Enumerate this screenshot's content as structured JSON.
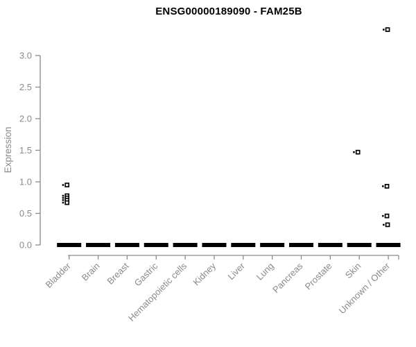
{
  "title": "ENSG00000189090 - FAM25B",
  "chart_data": {
    "type": "scatter",
    "subtype": "strip-plot",
    "title": "ENSG00000189090 - FAM25B",
    "xlabel": "",
    "ylabel": "Expression",
    "ylim": [
      0,
      3.45
    ],
    "yticks": [
      0.0,
      0.5,
      1.0,
      1.5,
      2.0,
      2.5,
      3.0
    ],
    "grid": false,
    "legend": "none",
    "categories": [
      "Bladder",
      "Brain",
      "Breast",
      "Gastric",
      "Hematopoietic cells",
      "Kidney",
      "Liver",
      "Lung",
      "Pancreas",
      "Prostate",
      "Skin",
      "Unknown / Other"
    ],
    "series": [
      {
        "category": "Bladder",
        "zero_band": true,
        "nonzero_values": [
          0.95,
          0.78,
          0.745,
          0.71,
          0.67
        ]
      },
      {
        "category": "Brain",
        "zero_band": true,
        "nonzero_values": []
      },
      {
        "category": "Breast",
        "zero_band": true,
        "nonzero_values": []
      },
      {
        "category": "Gastric",
        "zero_band": true,
        "nonzero_values": []
      },
      {
        "category": "Hematopoietic cells",
        "zero_band": true,
        "nonzero_values": []
      },
      {
        "category": "Kidney",
        "zero_band": true,
        "nonzero_values": []
      },
      {
        "category": "Liver",
        "zero_band": true,
        "nonzero_values": []
      },
      {
        "category": "Lung",
        "zero_band": true,
        "nonzero_values": []
      },
      {
        "category": "Pancreas",
        "zero_band": true,
        "nonzero_values": []
      },
      {
        "category": "Prostate",
        "zero_band": true,
        "nonzero_values": []
      },
      {
        "category": "Skin",
        "zero_band": true,
        "nonzero_values": [
          1.47
        ]
      },
      {
        "category": "Unknown / Other",
        "zero_band": true,
        "nonzero_values": [
          3.41,
          0.93,
          0.46,
          0.32
        ]
      }
    ],
    "zero_band_note": "dense band of overlapping points at expression 0 in every category",
    "colors": {
      "point": "#000000",
      "zero_band": "#000000",
      "axis": "#8a8a8a",
      "title": "#000000",
      "background": "#ffffff"
    }
  }
}
